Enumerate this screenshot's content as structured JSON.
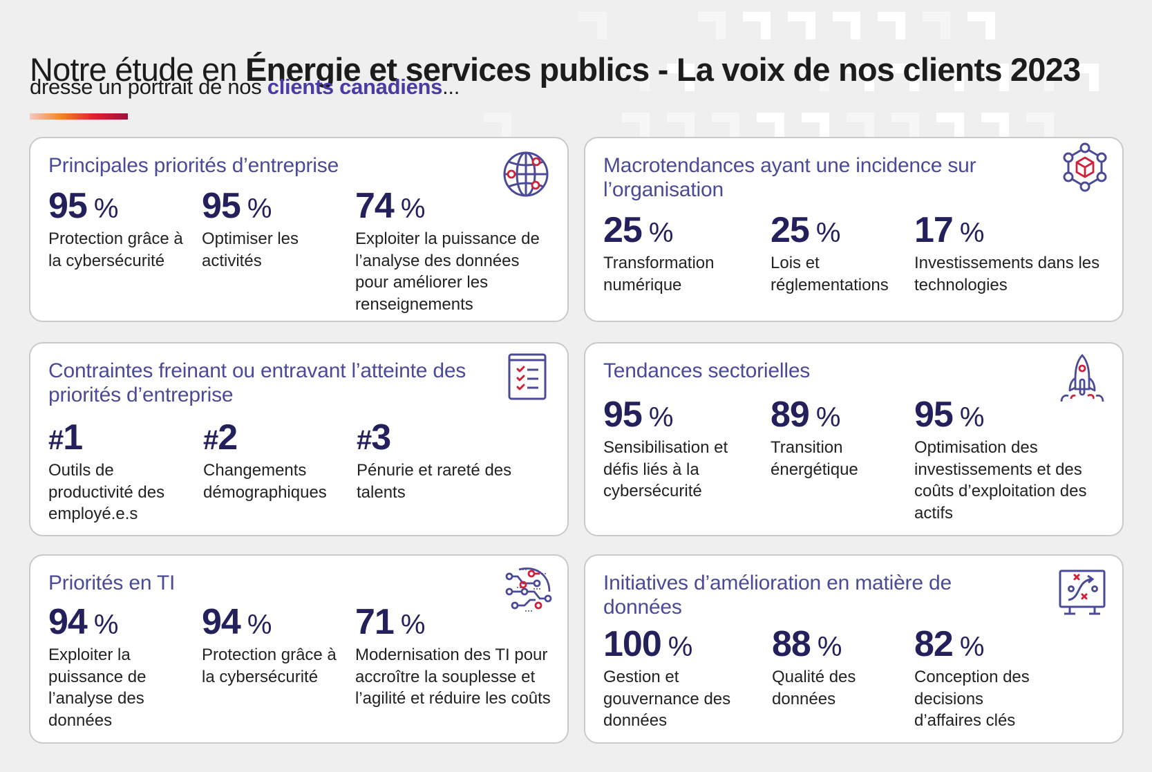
{
  "header": {
    "title_prefix": "Notre étude en ",
    "title_bold": "Énergie et services publics - La voix de nos clients 2023",
    "subtitle_prefix": "dresse un portrait de nos ",
    "subtitle_accent": "clients canadiens",
    "subtitle_suffix": "..."
  },
  "colors": {
    "background": "#efefef",
    "card_title": "#4b4a96",
    "stat_value": "#23205c",
    "accent_purple": "#4a3aa3",
    "icon_red": "#d0213a",
    "gradient": [
      "#f7c9c4",
      "#f08a2e",
      "#e0222f",
      "#a0123a"
    ]
  },
  "cards": [
    {
      "title": "Principales priorités d’entreprise",
      "icon": "globe-network-icon",
      "stats": [
        {
          "value": "95",
          "unit": "%",
          "label": "Protection grâce à la cybersécurité"
        },
        {
          "value": "95",
          "unit": "%",
          "label": "Optimiser les activités"
        },
        {
          "value": "74",
          "unit": "%",
          "label": "Exploiter la puissance de l’analyse des données pour améliorer les renseignements"
        }
      ]
    },
    {
      "title": "Macrotendances ayant une incidence sur l’organisation",
      "icon": "cube-network-icon",
      "stats": [
        {
          "value": "25",
          "unit": "%",
          "label": "Transformation numérique"
        },
        {
          "value": "25",
          "unit": "%",
          "label": "Lois et réglementations"
        },
        {
          "value": "17",
          "unit": "%",
          "label": "Investissements dans les technologies"
        }
      ]
    },
    {
      "title": "Contraintes freinant ou entravant l’atteinte des priorités d’entreprise",
      "icon": "checklist-clipboard-icon",
      "stats": [
        {
          "prefix": "#",
          "value": "1",
          "label": "Outils de productivité des employé.e.s"
        },
        {
          "prefix": "#",
          "value": "2",
          "label": "Changements démographiques"
        },
        {
          "prefix": "#",
          "value": "3",
          "label": "Pénurie et rareté des talents"
        }
      ]
    },
    {
      "title": "Tendances sectorielles",
      "icon": "rocket-icon",
      "stats": [
        {
          "value": "95",
          "unit": "%",
          "label": "Sensibilisation et défis liés à la cybersécurité"
        },
        {
          "value": "89",
          "unit": "%",
          "label": "Transition énergétique"
        },
        {
          "value": "95",
          "unit": "%",
          "label": "Optimisation des investissements et des coûts d’exploitation des actifs"
        }
      ]
    },
    {
      "title": "Priorités en TI",
      "icon": "circuit-icon",
      "stats": [
        {
          "value": "94",
          "unit": "%",
          "label": "Exploiter la puissance de l’analyse des données"
        },
        {
          "value": "94",
          "unit": "%",
          "label": "Protection grâce à la cybersécurité"
        },
        {
          "value": "71",
          "unit": "%",
          "label": "Modernisation des TI pour accroître la souplesse et l’agilité et réduire les coûts"
        }
      ]
    },
    {
      "title": "Initiatives d’amélioration en matière de données",
      "icon": "strategy-board-icon",
      "stats": [
        {
          "value": "100",
          "unit": "%",
          "label": "Gestion et gouvernance des données"
        },
        {
          "value": "88",
          "unit": "%",
          "label": "Qualité des données"
        },
        {
          "value": "82",
          "unit": "%",
          "label": "Conception des decisions d’affaires clés"
        }
      ]
    }
  ]
}
